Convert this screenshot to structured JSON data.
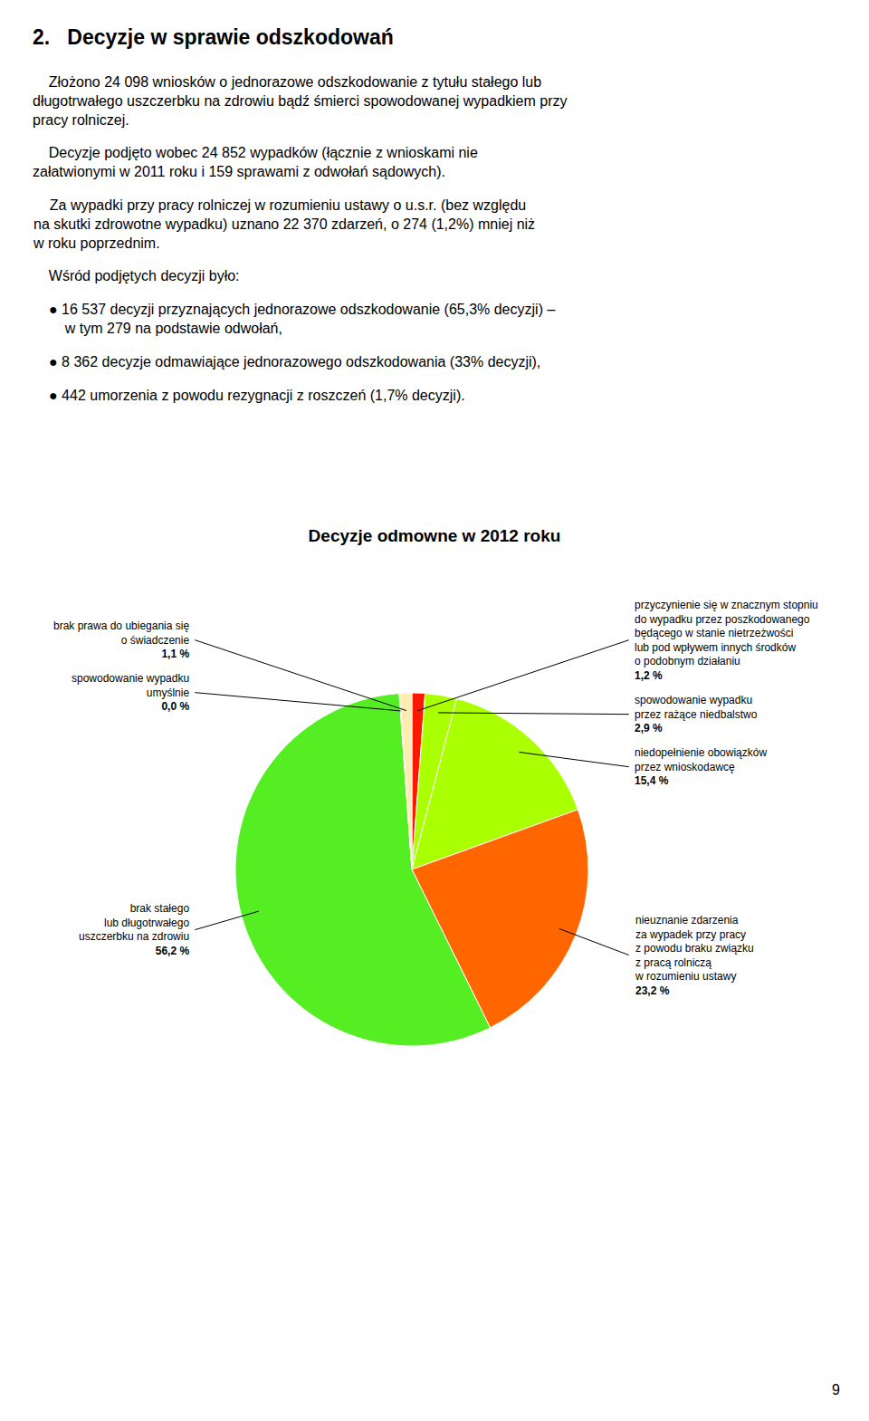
{
  "chart_data": {
    "type": "pie",
    "title": "Decyzje odmowne w 2012 roku",
    "categories": [
      "przyczynienie się w znacznym stopniu\ndo wypadku przez poszkodowanego\nbędącego w stanie nietrzeżwości\nlub pod wpływem innych środków\no podobnym działaniu",
      "spowodowanie wypadku\nprzez rażące niedbalstwo",
      "niedopełnienie obowiązków\nprzez wnioskodawcę",
      "nieuznanie zdarzenia\nza wypadek przy pracy\nz powodu braku związku\nz pracą rolniczą\nw rozumieniu ustawy",
      "brak stałego\nlub długotrwałego\nuszczerbku na zdrowiu",
      "spowodowanie wypadku\numyślnie",
      "brak prawa do ubiegania się\no świadczenie"
    ],
    "values": [
      1.2,
      2.9,
      15.4,
      23.2,
      56.2,
      0.05,
      1.1
    ],
    "value_labels": [
      "1,2 %",
      "2,9 %",
      "15,4 %",
      "23,2 %",
      "56,2 %",
      "0,0 %",
      "1,1 %"
    ],
    "colors": [
      "#ff1800",
      "#aaff00",
      "#aaff00",
      "#ff6600",
      "#55ee22",
      "#55ee22",
      "#ffecb0"
    ],
    "data_labels": true,
    "annotations": [
      "2.   Decyzje w sprawie odszkodowań",
      "    Złożono 24 098 wniosków o jednorazowe odszkodowanie z tytułu stałego lub\ndługotrwałego uszczerbku na zdrowiu bądź śmierci spowodowanej wypadkiem przy\npracy rolniczej.",
      "    Decyzje podjęto wobec 24 852 wypadków (łącznie z wnioskami nie\nzałatwionymi w 2011 roku i 159 sprawami z odwołań sądowych).",
      "    Za wypadki przy pracy rolniczej w rozumieniu ustawy o u.s.r. (bez względu\nna skutki zdrowotne wypadku) uznano 22 370 zdarzeń, o 274 (1,2%) mniej niż\nw roku poprzednim.",
      "    Wśród podjętych decyzji było:",
      "● 16 537 decyzji przyznających jednorazowe odszkodowanie (65,3% decyzji) –\n    w tym 279 na podstawie odwołań,",
      "● 8 362 decyzje odmawiające jednorazowego odszkodowania (33% decyzji),",
      "● 442 umorzenia z powodu rezygnacji z roszczeń (1,7% decyzji).",
      "9"
    ]
  }
}
